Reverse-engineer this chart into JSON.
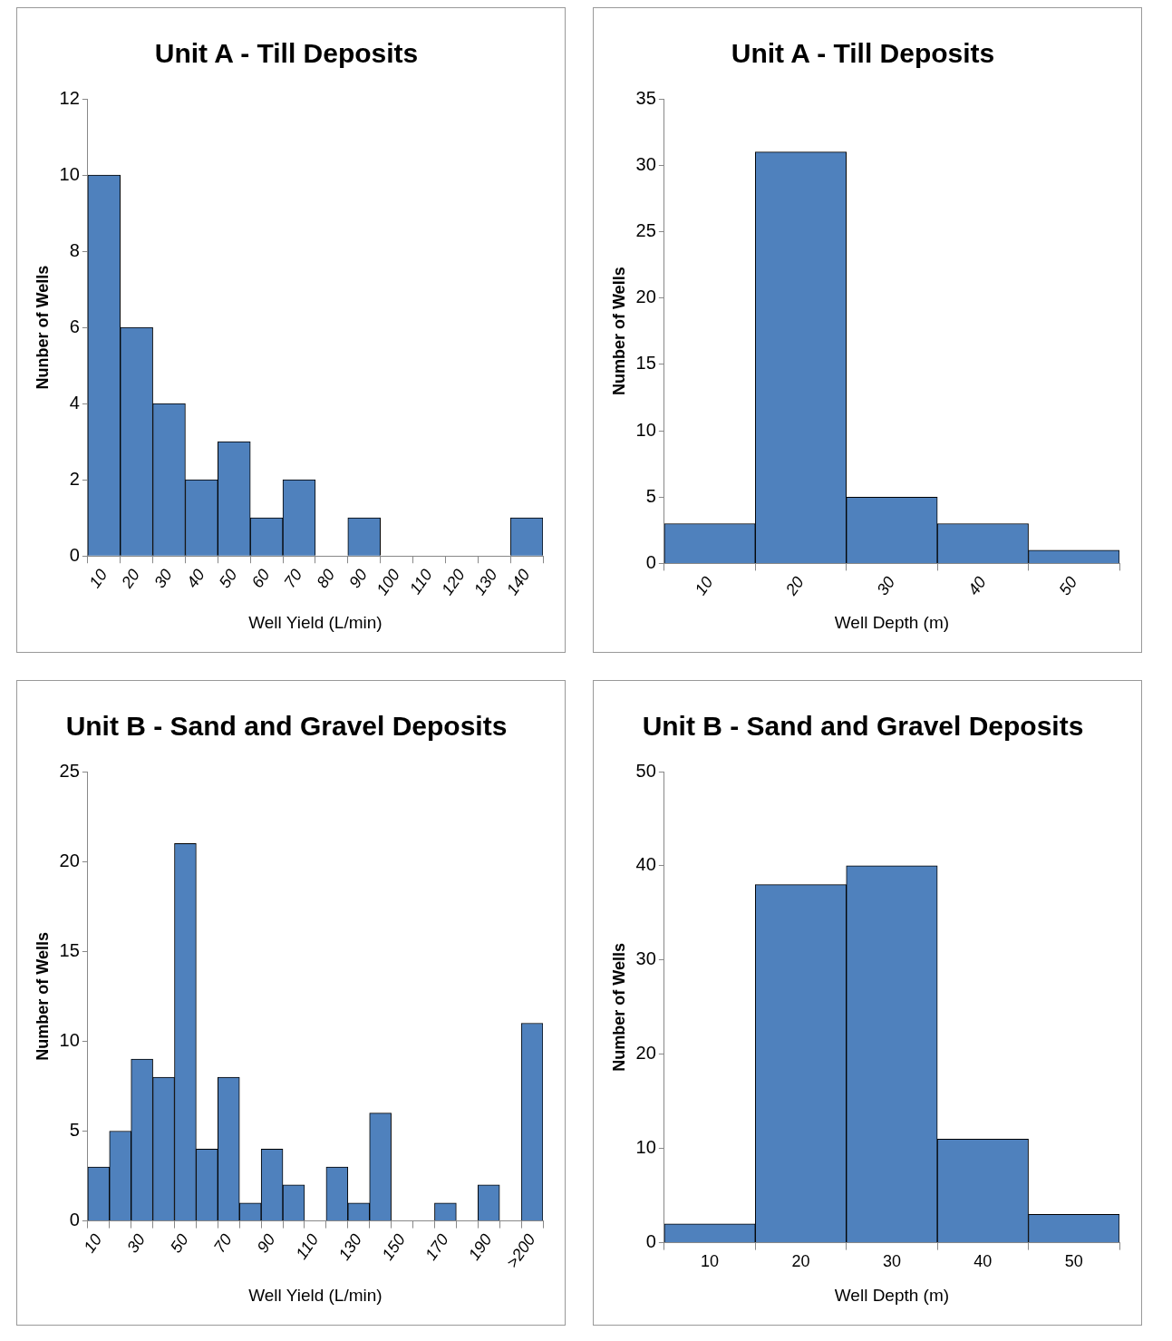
{
  "chart_data": [
    {
      "type": "bar",
      "title": "Unit A - Till Deposits",
      "xlabel": "Well Yield (L/min)",
      "ylabel": "Nunber of Wells",
      "categories": [
        "10",
        "20",
        "30",
        "40",
        "50",
        "60",
        "70",
        "80",
        "90",
        "100",
        "110",
        "120",
        "130",
        "140"
      ],
      "values": [
        10,
        6,
        4,
        2,
        3,
        1,
        2,
        0,
        1,
        0,
        0,
        0,
        0,
        1
      ],
      "color": "#4f81bd",
      "ylim": [
        0,
        12
      ],
      "yticks": [
        0,
        2,
        4,
        6,
        8,
        10,
        12
      ],
      "grid": false,
      "legend": false
    },
    {
      "type": "bar",
      "title": "Unit A - Till Deposits",
      "xlabel": "Well Depth (m)",
      "ylabel": "Number of Wells",
      "categories": [
        "10",
        "20",
        "30",
        "40",
        "50"
      ],
      "values": [
        3,
        31,
        5,
        3,
        1
      ],
      "color": "#4f81bd",
      "ylim": [
        0,
        35
      ],
      "yticks": [
        0,
        5,
        10,
        15,
        20,
        25,
        30,
        35
      ],
      "grid": false,
      "legend": false
    },
    {
      "type": "bar",
      "title": "Unit B - Sand and Gravel Deposits",
      "xlabel": "Well Yield (L/min)",
      "ylabel": "Number of Wells",
      "categories": [
        "10",
        null,
        "30",
        null,
        "50",
        null,
        "70",
        null,
        "90",
        null,
        "110",
        null,
        "130",
        null,
        "150",
        null,
        "170",
        null,
        "190",
        null,
        ">200"
      ],
      "values": [
        3,
        5,
        9,
        8,
        21,
        4,
        8,
        1,
        4,
        2,
        0,
        3,
        1,
        6,
        0,
        0,
        1,
        0,
        2,
        0,
        11
      ],
      "color": "#4f81bd",
      "ylim": [
        0,
        25
      ],
      "yticks": [
        0,
        5,
        10,
        15,
        20,
        25
      ],
      "grid": false,
      "legend": false
    },
    {
      "type": "bar",
      "title": "Unit B - Sand and Gravel Deposits",
      "xlabel": "Well Depth (m)",
      "ylabel": "Number of Wells",
      "categories": [
        "10",
        "20",
        "30",
        "40",
        "50"
      ],
      "values": [
        2,
        38,
        40,
        11,
        3
      ],
      "color": "#4f81bd",
      "ylim": [
        0,
        50
      ],
      "yticks": [
        0,
        10,
        20,
        30,
        40,
        50
      ],
      "grid": false,
      "legend": false
    }
  ]
}
